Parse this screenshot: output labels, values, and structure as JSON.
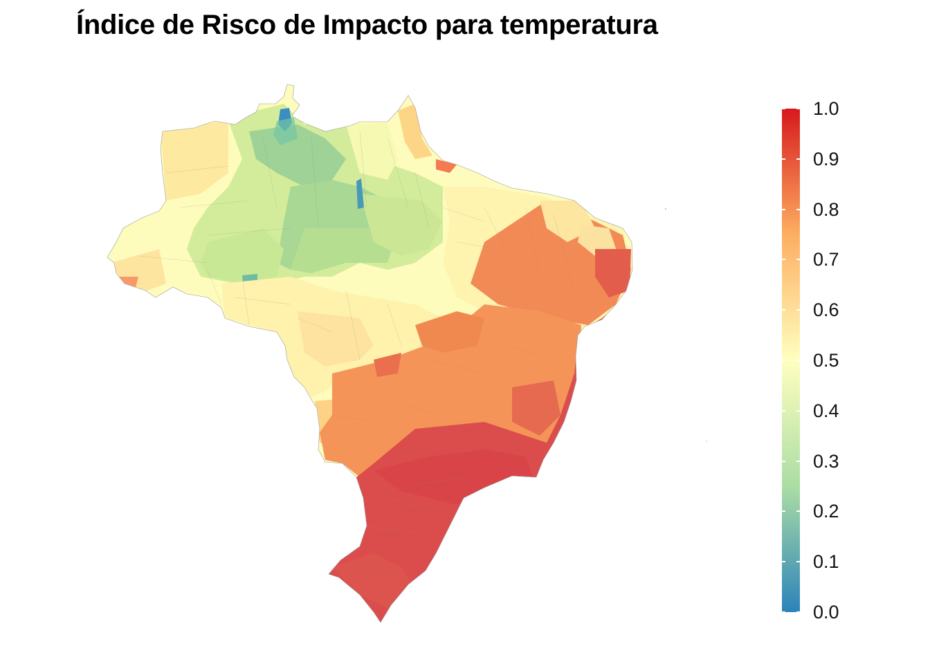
{
  "title": "Índice de Risco de Impacto para temperatura",
  "legend": {
    "ticks": [
      "1.0",
      "0.9",
      "0.8",
      "0.7",
      "0.6",
      "0.5",
      "0.4",
      "0.3",
      "0.2",
      "0.1",
      "0.0"
    ],
    "min": 0.0,
    "max": 1.0,
    "palette": [
      "#2b83ba",
      "#abdda4",
      "#ffffbf",
      "#fdae61",
      "#d7191c"
    ]
  },
  "map": {
    "subject": "Brazil municipalities choropleth",
    "colors": {
      "low": "#3288bd",
      "green": "#99d594",
      "pale_green": "#d9ef8b",
      "pale_yellow": "#ffffbf",
      "light_orange": "#fee08b",
      "orange": "#fc8d59",
      "red": "#d53e4f"
    }
  }
}
